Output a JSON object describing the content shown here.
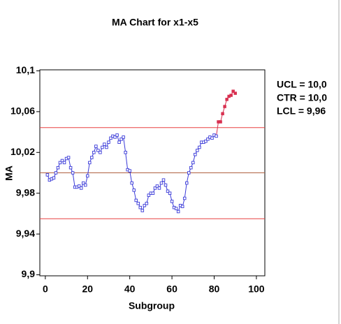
{
  "chart_data": {
    "type": "line",
    "title": "MA Chart for x1-x5",
    "xlabel": "Subgroup",
    "ylabel": "MA",
    "x": [
      1,
      2,
      3,
      4,
      5,
      6,
      7,
      8,
      9,
      10,
      11,
      12,
      13,
      14,
      15,
      16,
      17,
      18,
      19,
      20,
      21,
      22,
      23,
      24,
      25,
      26,
      27,
      28,
      29,
      30,
      31,
      32,
      33,
      34,
      35,
      36,
      37,
      38,
      39,
      40,
      41,
      42,
      43,
      44,
      45,
      46,
      47,
      48,
      49,
      50,
      51,
      52,
      53,
      54,
      55,
      56,
      57,
      58,
      59,
      60,
      61,
      62,
      63,
      64,
      65,
      66,
      67,
      68,
      69,
      70,
      71,
      72,
      73,
      74,
      75,
      76,
      77,
      78,
      79,
      80,
      81,
      82,
      83,
      84,
      85,
      86,
      87,
      88,
      89,
      90
    ],
    "series": [
      {
        "color": "#3a3ad8",
        "out_color": "#d83050",
        "values": [
          9.998,
          9.993,
          9.994,
          9.995,
          10.0,
          10.005,
          10.01,
          10.012,
          10.01,
          10.014,
          10.015,
          10.005,
          10.0,
          9.986,
          9.986,
          9.987,
          9.985,
          9.99,
          9.988,
          9.997,
          10.01,
          10.015,
          10.02,
          10.026,
          10.022,
          10.02,
          10.025,
          10.028,
          10.025,
          10.03,
          10.034,
          10.036,
          10.035,
          10.037,
          10.03,
          10.033,
          10.035,
          10.02,
          10.003,
          10.002,
          9.99,
          9.983,
          9.973,
          9.97,
          9.966,
          9.963,
          9.968,
          9.97,
          9.978,
          9.98,
          9.98,
          9.985,
          9.987,
          9.985,
          9.99,
          9.993,
          9.988,
          9.982,
          9.98,
          9.972,
          9.966,
          9.965,
          9.962,
          9.968,
          9.967,
          9.975,
          9.99,
          10.0,
          10.005,
          10.01,
          10.018,
          10.022,
          10.025,
          10.03,
          10.03,
          10.031,
          10.033,
          10.035,
          10.034,
          10.037,
          10.036,
          10.05,
          10.05,
          10.058,
          10.065,
          10.072,
          10.075,
          10.076,
          10.08,
          10.078
        ]
      }
    ],
    "control_limits": [
      {
        "value": 10.0443,
        "label": "UCL = 10,0",
        "color": "#e84040"
      },
      {
        "value": 10.0,
        "label": "CTR = 10,0",
        "color": "#b06040"
      },
      {
        "value": 9.955,
        "label": "LCL = 9,96",
        "color": "#e84040"
      }
    ],
    "xlim": [
      -2.6,
      104
    ],
    "ylim": [
      9.899,
      10.101
    ],
    "xticks": [
      0,
      20,
      40,
      60,
      80,
      100
    ],
    "yticks": [
      {
        "value": 9.9,
        "label": "9,9"
      },
      {
        "value": 9.94,
        "label": "9,94"
      },
      {
        "value": 9.98,
        "label": "9,98"
      },
      {
        "value": 10.02,
        "label": "10,02"
      },
      {
        "value": 10.06,
        "label": "10,06"
      },
      {
        "value": 10.1,
        "label": "10,1"
      }
    ]
  }
}
